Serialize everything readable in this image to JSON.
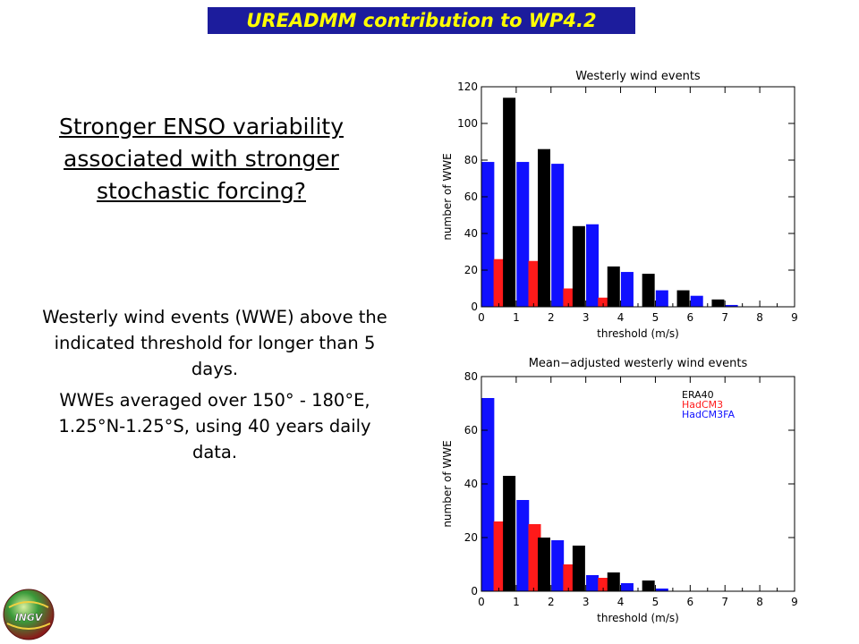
{
  "header": {
    "title": "UREADMM contribution to WP4.2"
  },
  "headline": {
    "lines": [
      "Stronger ENSO variability",
      "associated with stronger",
      "stochastic forcing?"
    ]
  },
  "description": {
    "para1": "Westerly wind events (WWE) above the indicated threshold for longer than 5 days.",
    "para2": "WWEs averaged over 150° - 180°E, 1.25°N-1.25°S, using 40 years daily data."
  },
  "logo": {
    "text": "INGV"
  },
  "colors": {
    "banner_bg": "#1c1c9c",
    "banner_text": "#ffff00",
    "ERA40": "#000000",
    "HadCM3": "#ff1a1a",
    "HadCM3FA": "#1010ff"
  },
  "chart_data": [
    {
      "type": "bar",
      "title": "Westerly wind events",
      "xlabel": "threshold (m/s)",
      "ylabel": "number of WWE",
      "xlim": [
        0,
        9
      ],
      "ylim": [
        0,
        120
      ],
      "xticks": [
        0,
        1,
        2,
        3,
        4,
        5,
        6,
        7,
        8,
        9
      ],
      "yticks": [
        0,
        20,
        40,
        60,
        80,
        100,
        120
      ],
      "categories": [
        0.5,
        1.5,
        2.5,
        3.5,
        4.5,
        5.5,
        6.5,
        7.5
      ],
      "series": [
        {
          "name": "HadCM3FA",
          "color": "#1010ff",
          "values": [
            79,
            79,
            78,
            45,
            19,
            9,
            6,
            1
          ]
        },
        {
          "name": "HadCM3",
          "color": "#ff1a1a",
          "values": [
            26,
            25,
            10,
            5,
            0,
            0,
            0,
            0
          ]
        },
        {
          "name": "ERA40",
          "color": "#000000",
          "values": [
            114,
            86,
            44,
            22,
            18,
            9,
            4,
            0
          ]
        }
      ]
    },
    {
      "type": "bar",
      "title": "Mean−adjusted westerly wind events",
      "xlabel": "threshold (m/s)",
      "ylabel": "number of WWE",
      "xlim": [
        0,
        9
      ],
      "ylim": [
        0,
        80
      ],
      "xticks": [
        0,
        1,
        2,
        3,
        4,
        5,
        6,
        7,
        8,
        9
      ],
      "yticks": [
        0,
        20,
        40,
        60,
        80
      ],
      "legend": {
        "position": "top-right",
        "entries": [
          "ERA40",
          "HadCM3",
          "HadCM3FA"
        ]
      },
      "categories": [
        0.5,
        1.5,
        2.5,
        3.5,
        4.5,
        5.5,
        6.5,
        7.5
      ],
      "series": [
        {
          "name": "HadCM3FA",
          "color": "#1010ff",
          "values": [
            72,
            34,
            19,
            6,
            3,
            1,
            0,
            0
          ]
        },
        {
          "name": "HadCM3",
          "color": "#ff1a1a",
          "values": [
            26,
            25,
            10,
            5,
            0,
            0,
            0,
            0
          ]
        },
        {
          "name": "ERA40",
          "color": "#000000",
          "values": [
            43,
            20,
            17,
            7,
            4,
            0,
            0,
            0
          ]
        }
      ]
    }
  ]
}
